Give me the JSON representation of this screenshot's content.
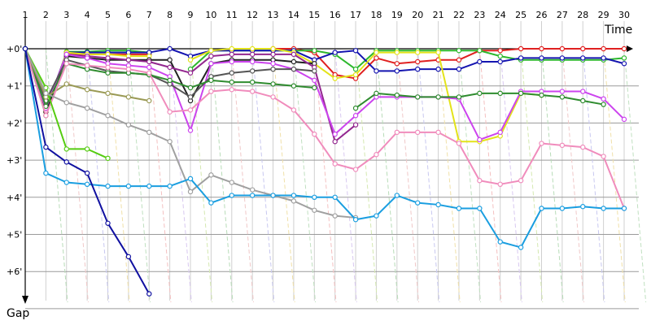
{
  "chart_data": {
    "type": "line",
    "title": "",
    "xlabel": "Time",
    "ylabel": "Gap",
    "laps": [
      "1",
      "2",
      "3",
      "4",
      "5",
      "6",
      "7",
      "8",
      "9",
      "10",
      "11",
      "12",
      "13",
      "14",
      "15",
      "16",
      "17",
      "18",
      "19",
      "20",
      "21",
      "22",
      "23",
      "24",
      "25",
      "26",
      "27",
      "28",
      "29",
      "30"
    ],
    "ytick_labels": [
      "+0'",
      "+1'",
      "+2'",
      "+3'",
      "+4'",
      "+5'",
      "+6'"
    ],
    "ylim": [
      0,
      7
    ],
    "grid": true,
    "series": [
      {
        "name": "red",
        "color": "#e02020",
        "values": [
          0,
          1.6,
          0.15,
          0.15,
          0.15,
          0.15,
          0.15,
          null,
          null,
          null,
          null,
          null,
          0,
          0,
          0.1,
          0.7,
          0.8,
          0.25,
          0.4,
          0.35,
          0.3,
          0.3,
          0.05,
          0.05,
          0,
          0,
          0,
          0,
          0,
          0
        ]
      },
      {
        "name": "green",
        "color": "#2db82d",
        "values": [
          0,
          1.8,
          0.08,
          0.08,
          0.05,
          0.05,
          0.1,
          null,
          0.55,
          0.05,
          0.05,
          0.05,
          0.05,
          0.05,
          0.05,
          0.15,
          0.55,
          0.05,
          0.05,
          0.05,
          0.05,
          0.05,
          0.05,
          0.2,
          0.3,
          0.3,
          0.3,
          0.3,
          0.3,
          0.25
        ]
      },
      {
        "name": "navy",
        "color": "#1515b0",
        "values": [
          0,
          1.65,
          0.1,
          0.1,
          0.1,
          0.1,
          0.1,
          0,
          0.2,
          0.05,
          0.05,
          0.05,
          0.05,
          0.05,
          0.3,
          0.1,
          0.05,
          0.6,
          0.6,
          0.55,
          0.55,
          0.55,
          0.35,
          0.35,
          0.25,
          0.25,
          0.25,
          0.25,
          0.25,
          0.4
        ]
      },
      {
        "name": "yellow",
        "color": "#e3e31a",
        "values": [
          0,
          1.7,
          0.1,
          0.15,
          0.15,
          0.2,
          0.2,
          null,
          0.3,
          0.05,
          0,
          0,
          0,
          0.1,
          0.4,
          0.8,
          0.7,
          0.1,
          0.1,
          0.1,
          0.1,
          2.5,
          2.5,
          2.35,
          1.2,
          1.25,
          null,
          null,
          null,
          null
        ]
      },
      {
        "name": "black",
        "color": "#222222",
        "values": [
          0,
          1.7,
          0.2,
          0.25,
          0.3,
          0.3,
          0.3,
          0.3,
          1.4,
          0.4,
          0.3,
          0.3,
          0.3,
          0.35,
          0.4,
          null,
          null,
          null,
          null,
          null,
          null,
          null,
          null,
          null,
          null,
          null,
          null,
          null,
          null,
          null
        ]
      },
      {
        "name": "dark-magenta",
        "color": "#93278f",
        "values": [
          0,
          1.6,
          0.15,
          0.2,
          0.25,
          0.3,
          0.35,
          0.5,
          0.65,
          0.2,
          0.15,
          0.15,
          0.15,
          0.15,
          0.5,
          2.5,
          2.05,
          null,
          null,
          null,
          null,
          null,
          null,
          null,
          null,
          null,
          null,
          null,
          null,
          null
        ]
      },
      {
        "name": "violet",
        "color": "#cc44ee",
        "values": [
          0,
          1.6,
          0.15,
          0.25,
          0.4,
          0.45,
          0.5,
          0.75,
          2.2,
          0.4,
          0.35,
          0.35,
          0.4,
          0.55,
          0.85,
          2.3,
          1.8,
          1.3,
          1.3,
          1.3,
          1.3,
          1.35,
          2.45,
          2.25,
          1.15,
          1.15,
          1.15,
          1.15,
          1.35,
          1.9
        ]
      },
      {
        "name": "dark-gray",
        "color": "#555555",
        "values": [
          0,
          1.4,
          0.3,
          0.45,
          0.6,
          0.65,
          0.7,
          0.95,
          1.3,
          0.75,
          0.65,
          0.6,
          0.55,
          0.55,
          0.6,
          null,
          null,
          null,
          null,
          null,
          null,
          null,
          null,
          null,
          null,
          null,
          null,
          null,
          null,
          null
        ]
      },
      {
        "name": "dark-green",
        "color": "#2f8c2f",
        "values": [
          0,
          1.55,
          0.4,
          0.55,
          0.65,
          0.65,
          0.7,
          0.85,
          1.05,
          0.85,
          0.9,
          0.9,
          0.95,
          1.0,
          1.05,
          null,
          1.6,
          1.2,
          1.25,
          1.3,
          1.3,
          1.3,
          1.2,
          1.2,
          1.2,
          1.25,
          1.3,
          1.4,
          1.5,
          null
        ]
      },
      {
        "name": "olive",
        "color": "#9a9a55",
        "values": [
          0,
          1.3,
          0.95,
          1.1,
          1.2,
          1.3,
          1.4,
          null,
          null,
          null,
          null,
          null,
          null,
          null,
          null,
          null,
          null,
          null,
          null,
          null,
          null,
          null,
          null,
          null,
          null,
          null,
          null,
          null,
          null,
          null
        ]
      },
      {
        "name": "pink",
        "color": "#f08cbc",
        "values": [
          0,
          1.8,
          0.4,
          0.45,
          0.5,
          0.55,
          0.65,
          1.7,
          1.65,
          1.15,
          1.1,
          1.15,
          1.3,
          1.65,
          2.3,
          3.1,
          3.25,
          2.85,
          2.25,
          2.25,
          2.25,
          2.55,
          3.55,
          3.65,
          3.55,
          2.55,
          2.6,
          2.65,
          2.9,
          4.3
        ]
      },
      {
        "name": "light-green",
        "color": "#55cc11",
        "values": [
          0,
          1.05,
          2.7,
          2.7,
          2.95,
          null,
          null,
          null,
          null,
          null,
          null,
          null,
          null,
          null,
          null,
          null,
          null,
          null,
          null,
          null,
          null,
          null,
          null,
          null,
          null,
          null,
          null,
          null,
          null,
          null
        ]
      },
      {
        "name": "gray",
        "color": "#a0a0a0",
        "values": [
          0,
          1.2,
          1.45,
          1.6,
          1.8,
          2.05,
          2.25,
          2.5,
          3.85,
          3.4,
          3.6,
          3.8,
          3.95,
          4.1,
          4.35,
          4.5,
          4.55,
          null,
          null,
          null,
          null,
          null,
          null,
          null,
          null,
          null,
          null,
          null,
          null,
          null
        ]
      },
      {
        "name": "sky-blue",
        "color": "#1a9ee0",
        "values": [
          0,
          3.35,
          3.6,
          3.65,
          3.7,
          3.7,
          3.7,
          3.7,
          3.5,
          4.15,
          3.95,
          3.95,
          3.95,
          3.95,
          4.0,
          4.0,
          4.6,
          4.5,
          3.95,
          4.15,
          4.2,
          4.3,
          4.3,
          5.2,
          5.35,
          4.3,
          4.3,
          4.25,
          4.3,
          4.3
        ]
      },
      {
        "name": "blue",
        "color": "#1010a0",
        "values": [
          0,
          2.65,
          3.05,
          3.35,
          4.7,
          5.6,
          6.6,
          null,
          null,
          null,
          null,
          null,
          null,
          null,
          null,
          null,
          null,
          null,
          null,
          null,
          null,
          null,
          null,
          null,
          null,
          null,
          null,
          null,
          null,
          null
        ]
      }
    ]
  }
}
